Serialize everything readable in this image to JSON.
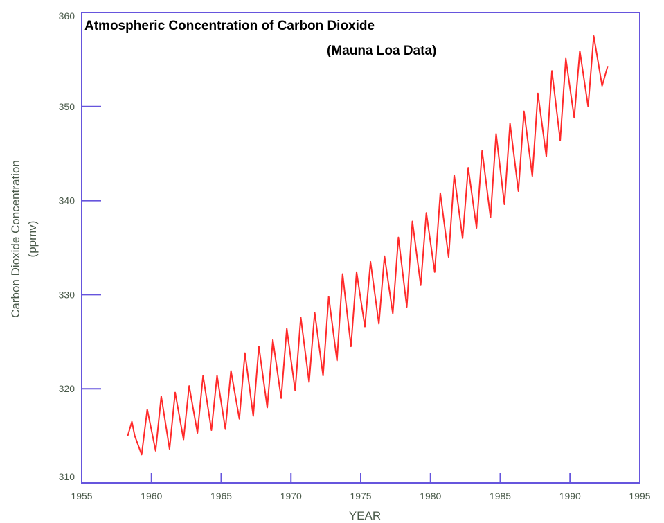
{
  "chart_data": {
    "type": "line",
    "title": "Atmospheric Concentration of Carbon Dioxide",
    "subtitle": "(Mauna Loa Data)",
    "xlabel": "YEAR",
    "ylabel": "Carbon Dioxide Concentration",
    "ylabel_unit": "(ppmv)",
    "xlim": [
      1955,
      1995
    ],
    "ylim": [
      310,
      360
    ],
    "xticks": [
      1955,
      1960,
      1965,
      1970,
      1975,
      1980,
      1985,
      1990,
      1995
    ],
    "yticks": [
      310,
      320,
      330,
      340,
      350,
      360
    ],
    "grid": false,
    "line_color": "#ff2a2a",
    "axis_color": "#6655dd",
    "seasonal_cycle": {
      "years": [
        1958,
        1959,
        1960,
        1961,
        1962,
        1963,
        1964,
        1965,
        1966,
        1967,
        1968,
        1969,
        1970,
        1971,
        1972,
        1973,
        1974,
        1975,
        1976,
        1977,
        1978,
        1979,
        1980,
        1981,
        1982,
        1983,
        1984,
        1985,
        1986,
        1987,
        1988,
        1989,
        1990,
        1991,
        1992
      ],
      "peaks": [
        316.5,
        317.8,
        319.2,
        319.6,
        320.3,
        321.4,
        321.4,
        321.9,
        323.8,
        324.5,
        325.2,
        326.4,
        327.6,
        328.1,
        329.8,
        332.2,
        332.4,
        333.5,
        334.1,
        336.1,
        337.8,
        338.7,
        340.8,
        342.7,
        343.5,
        345.3,
        347.1,
        348.2,
        349.5,
        351.4,
        353.8,
        355.1,
        355.9,
        356.3,
        357.5
      ],
      "troughs": [
        313.0,
        313.4,
        313.6,
        314.6,
        315.3,
        315.6,
        315.7,
        316.8,
        317.1,
        318.0,
        319.0,
        319.8,
        320.7,
        321.4,
        323.0,
        324.5,
        326.6,
        326.9,
        328.0,
        328.7,
        331.0,
        332.4,
        334.0,
        336.0,
        337.1,
        338.2,
        339.6,
        341.0,
        342.6,
        344.7,
        346.4,
        348.8,
        350.0,
        351.1,
        352.2
      ]
    },
    "series": [
      {
        "x": [
          1958.3,
          1958.6,
          1958.8,
          1959.3,
          1959.7,
          1960.3,
          1960.7,
          1961.3,
          1961.7,
          1962.3,
          1962.7,
          1963.3,
          1963.7,
          1964.3,
          1964.7,
          1965.3,
          1965.7,
          1966.3,
          1966.7,
          1967.3,
          1967.7,
          1968.3,
          1968.7,
          1969.3,
          1969.7,
          1970.3,
          1970.7,
          1971.3,
          1971.7,
          1972.3,
          1972.7,
          1973.3,
          1973.7,
          1974.3,
          1974.7,
          1975.3,
          1975.7,
          1976.3,
          1976.7,
          1977.3,
          1977.7,
          1978.3,
          1978.7,
          1979.3,
          1979.7,
          1980.3,
          1980.7,
          1981.3,
          1981.7,
          1982.3,
          1982.7,
          1983.3,
          1983.7,
          1984.3,
          1984.7,
          1985.3,
          1985.7,
          1986.3,
          1986.7,
          1987.3,
          1987.7,
          1988.3,
          1988.7,
          1989.3,
          1989.7,
          1990.3,
          1990.7,
          1991.3,
          1991.7,
          1992.3,
          1992.7
        ],
        "y": [
          315.0,
          316.5,
          315.0,
          313.0,
          317.8,
          313.4,
          319.2,
          313.6,
          319.6,
          314.6,
          320.3,
          315.3,
          321.4,
          315.6,
          321.4,
          315.7,
          321.9,
          316.8,
          323.8,
          317.1,
          324.5,
          318.0,
          325.2,
          319.0,
          326.4,
          319.8,
          327.6,
          320.7,
          328.1,
          321.4,
          329.8,
          323.0,
          332.2,
          324.5,
          332.4,
          326.6,
          333.5,
          326.9,
          334.1,
          328.0,
          336.1,
          328.7,
          337.8,
          331.0,
          338.7,
          332.4,
          340.8,
          334.0,
          342.7,
          336.0,
          343.5,
          337.1,
          345.3,
          338.2,
          347.1,
          339.6,
          348.2,
          341.0,
          349.5,
          342.6,
          351.4,
          344.7,
          353.8,
          346.4,
          355.1,
          348.8,
          355.9,
          350.0,
          357.5,
          352.2,
          354.3
        ]
      }
    ]
  }
}
